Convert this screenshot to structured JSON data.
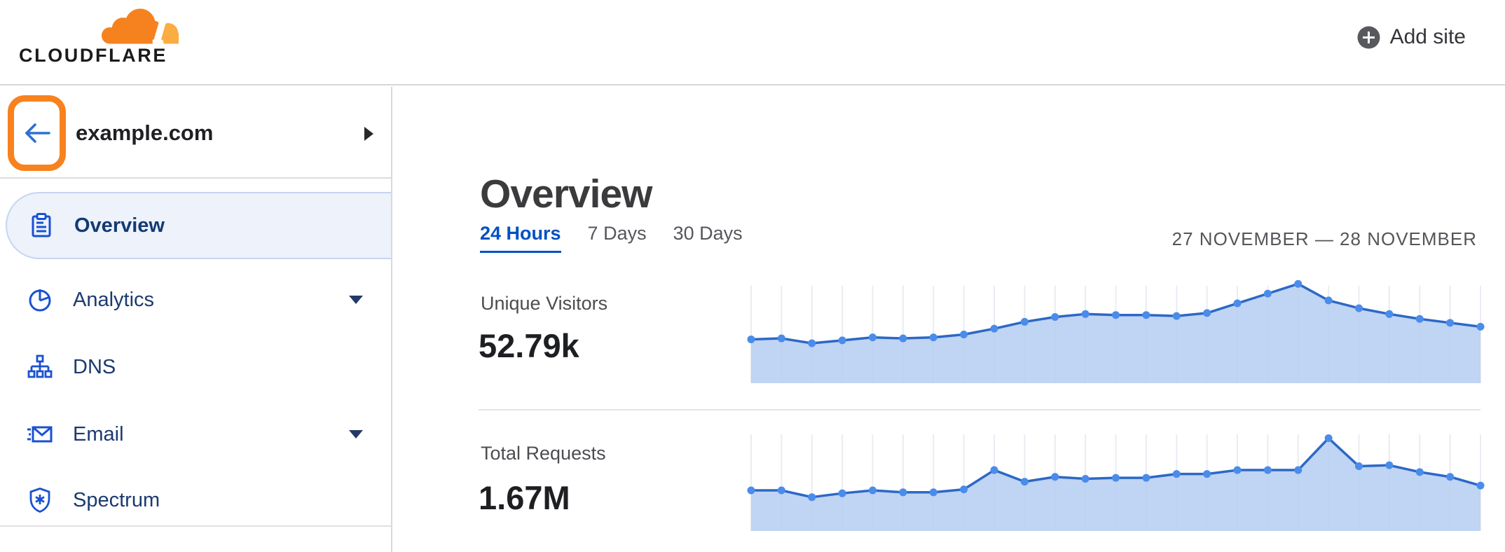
{
  "header": {
    "logo_text": "CLOUDFLARE",
    "add_site_label": "Add site"
  },
  "sidebar": {
    "site": {
      "name": "example.com"
    },
    "items": [
      {
        "label": "Overview",
        "icon": "clipboard-icon",
        "selected": true,
        "caret": false
      },
      {
        "label": "Analytics",
        "icon": "pie-chart-icon",
        "selected": false,
        "caret": true
      },
      {
        "label": "DNS",
        "icon": "dns-tree-icon",
        "selected": false,
        "caret": false
      },
      {
        "label": "Email",
        "icon": "email-icon",
        "selected": false,
        "caret": true
      },
      {
        "label": "Spectrum",
        "icon": "shield-icon",
        "selected": false,
        "caret": false
      }
    ]
  },
  "main": {
    "title": "Overview",
    "tabs": [
      {
        "label": "24 Hours",
        "active": true
      },
      {
        "label": "7 Days",
        "active": false
      },
      {
        "label": "30 Days",
        "active": false
      }
    ],
    "date_range": "27 NOVEMBER — 28 NOVEMBER",
    "stats": [
      {
        "label": "Unique Visitors",
        "value": "52.79k"
      },
      {
        "label": "Total Requests",
        "value": "1.67M"
      }
    ]
  },
  "colors": {
    "brand_orange": "#f6821f",
    "brand_orange_light": "#fbad41",
    "link_blue": "#0051c3",
    "icon_blue": "#1a51d2",
    "chart_line": "#2c68c6",
    "chart_dot": "#4a8cea",
    "chart_fill": "#b9cff2",
    "chart_grid": "#e9ecf2",
    "selected_item_bg": "#edf2fb"
  },
  "chart_data": [
    {
      "type": "area",
      "title": "Unique Visitors",
      "stat_total": "52.79k",
      "x_range_label": "27 NOVEMBER — 28 NOVEMBER",
      "xlabel": "",
      "ylabel": "",
      "grid": "vertical-only",
      "legend": "none",
      "ylim": [
        0,
        100
      ],
      "unit": "percent of chart height (no axis labels shown)",
      "x": [
        0,
        1,
        2,
        3,
        4,
        5,
        6,
        7,
        8,
        9,
        10,
        11,
        12,
        13,
        14,
        15,
        16,
        17,
        18,
        19,
        20,
        21,
        22,
        23,
        24
      ],
      "values": [
        45,
        46,
        41,
        44,
        47,
        46,
        47,
        50,
        56,
        63,
        68,
        71,
        70,
        70,
        69,
        72,
        82,
        92,
        102,
        85,
        77,
        71,
        66,
        62,
        58
      ]
    },
    {
      "type": "area",
      "title": "Total Requests",
      "stat_total": "1.67M",
      "x_range_label": "27 NOVEMBER — 28 NOVEMBER",
      "xlabel": "",
      "ylabel": "",
      "grid": "vertical-only",
      "legend": "none",
      "ylim": [
        0,
        100
      ],
      "unit": "percent of chart height (no axis labels shown)",
      "x": [
        0,
        1,
        2,
        3,
        4,
        5,
        6,
        7,
        8,
        9,
        10,
        11,
        12,
        13,
        14,
        15,
        16,
        17,
        18,
        19,
        20,
        21,
        22,
        23,
        24
      ],
      "values": [
        42,
        42,
        35,
        39,
        42,
        40,
        40,
        43,
        63,
        51,
        56,
        54,
        55,
        55,
        59,
        59,
        63,
        63,
        63,
        96,
        67,
        68,
        61,
        56,
        47
      ]
    }
  ]
}
